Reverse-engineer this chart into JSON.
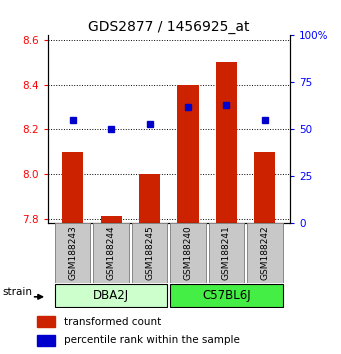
{
  "title": "GDS2877 / 1456925_at",
  "samples": [
    "GSM188243",
    "GSM188244",
    "GSM188245",
    "GSM188240",
    "GSM188241",
    "GSM188242"
  ],
  "groups": [
    "DBA2J",
    "DBA2J",
    "DBA2J",
    "C57BL6J",
    "C57BL6J",
    "C57BL6J"
  ],
  "group_labels": [
    "DBA2J",
    "C57BL6J"
  ],
  "group_color_left": "#CCFFCC",
  "group_color_right": "#44EE44",
  "red_values": [
    8.1,
    7.81,
    8.0,
    8.4,
    8.5,
    8.1
  ],
  "blue_values_pct": [
    55,
    50,
    53,
    62,
    63,
    55
  ],
  "bar_bottom": 7.78,
  "ylim": [
    7.78,
    8.62
  ],
  "yticks": [
    7.8,
    8.0,
    8.2,
    8.4,
    8.6
  ],
  "right_yticks": [
    0,
    25,
    50,
    75,
    100
  ],
  "bar_color": "#CC2200",
  "dot_color": "#0000CC",
  "bar_width": 0.55,
  "legend_red": "transformed count",
  "legend_blue": "percentile rank within the sample",
  "strain_label": "strain",
  "sample_box_color": "#C8C8C8",
  "title_fontsize": 10
}
